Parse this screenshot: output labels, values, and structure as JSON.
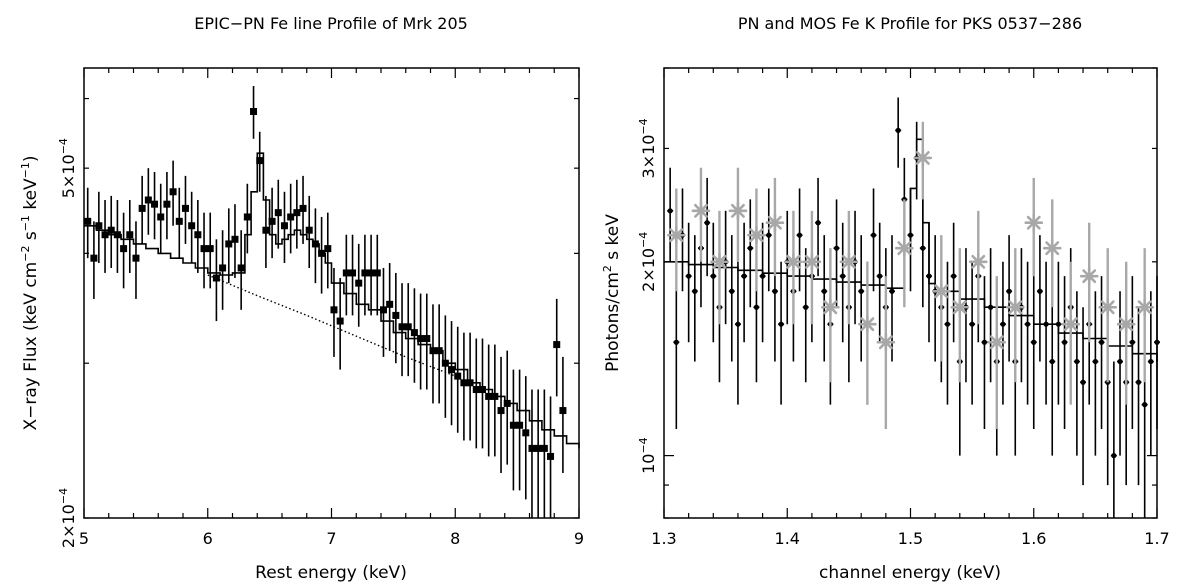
{
  "chart_data": [
    {
      "type": "scatter",
      "title": "EPIC−PN Fe line Profile of Mrk 205",
      "xlabel": "Rest energy (keV)",
      "ylabel_parts": [
        "X−ray Flux (keV cm",
        "−2",
        " s",
        "−1",
        " keV",
        "−1",
        ")"
      ],
      "xlim": [
        5,
        9
      ],
      "ylim": [
        0.0002,
        0.00065
      ],
      "yscale": "log",
      "x_ticks": [
        5,
        6,
        7,
        8,
        9
      ],
      "y_tick_labels": [
        {
          "value": 0.0002,
          "mantissa": "2×10",
          "exp": "−4"
        },
        {
          "value": 0.0005,
          "mantissa": "5×10",
          "exp": "−4"
        }
      ],
      "series": [
        {
          "style": "black-squares",
          "x": [
            5.03,
            5.08,
            5.12,
            5.17,
            5.22,
            5.27,
            5.32,
            5.37,
            5.42,
            5.47,
            5.52,
            5.57,
            5.62,
            5.67,
            5.72,
            5.77,
            5.82,
            5.87,
            5.92,
            5.97,
            6.02,
            6.07,
            6.12,
            6.17,
            6.22,
            6.27,
            6.32,
            6.37,
            6.42,
            6.47,
            6.52,
            6.57,
            6.62,
            6.67,
            6.72,
            6.77,
            6.82,
            6.87,
            6.92,
            6.97,
            7.02,
            7.07,
            7.12,
            7.17,
            7.22,
            7.27,
            7.32,
            7.37,
            7.42,
            7.47,
            7.52,
            7.57,
            7.62,
            7.67,
            7.72,
            7.77,
            7.82,
            7.87,
            7.92,
            7.97,
            8.02,
            8.07,
            8.12,
            8.17,
            8.22,
            8.27,
            8.32,
            8.37,
            8.42,
            8.47,
            8.52,
            8.57,
            8.62,
            8.67,
            8.72,
            8.77,
            8.82,
            8.87
          ],
          "y": [
            0.000435,
            0.000395,
            0.00043,
            0.00042,
            0.000425,
            0.00042,
            0.000405,
            0.00042,
            0.000395,
            0.00045,
            0.00046,
            0.000455,
            0.00044,
            0.000455,
            0.00047,
            0.000435,
            0.00045,
            0.00043,
            0.00042,
            0.000405,
            0.000405,
            0.000375,
            0.000385,
            0.00041,
            0.000415,
            0.000385,
            0.00044,
            0.00058,
            0.00051,
            0.000425,
            0.000435,
            0.000445,
            0.00043,
            0.00044,
            0.000445,
            0.00045,
            0.000425,
            0.00041,
            0.0004,
            0.000405,
            0.000345,
            0.000335,
            0.00038,
            0.00038,
            0.00037,
            0.00038,
            0.00038,
            0.00038,
            0.000345,
            0.00035,
            0.00034,
            0.00033,
            0.00033,
            0.000325,
            0.00032,
            0.00032,
            0.00031,
            0.00031,
            0.0003,
            0.000295,
            0.00029,
            0.000285,
            0.000285,
            0.00028,
            0.00028,
            0.000275,
            0.000275,
            0.000265,
            0.00027,
            0.000255,
            0.000255,
            0.00025,
            0.00024,
            0.00024,
            0.00024,
            0.000235,
            0.000315,
            0.000265
          ],
          "y_err": 4e-05
        }
      ],
      "model_step": {
        "x": [
          5.0,
          5.1,
          5.2,
          5.3,
          5.4,
          5.5,
          5.6,
          5.7,
          5.8,
          5.9,
          6.0,
          6.1,
          6.2,
          6.3,
          6.35,
          6.4,
          6.45,
          6.5,
          6.55,
          6.6,
          6.65,
          6.7,
          6.75,
          6.8,
          6.85,
          6.9,
          6.95,
          7.0,
          7.1,
          7.2,
          7.3,
          7.4,
          7.5,
          7.6,
          7.7,
          7.8,
          7.9,
          8.0,
          8.1,
          8.2,
          8.3,
          8.4,
          8.5,
          8.6,
          8.7,
          8.8,
          8.9,
          9.0
        ],
        "y": [
          0.00043,
          0.000425,
          0.00042,
          0.000415,
          0.00041,
          0.000405,
          0.0004,
          0.000395,
          0.00039,
          0.000385,
          0.00038,
          0.000378,
          0.00038,
          0.00042,
          0.00047,
          0.00052,
          0.00046,
          0.00042,
          0.00041,
          0.000415,
          0.00042,
          0.000425,
          0.00042,
          0.000415,
          0.00041,
          0.0004,
          0.00039,
          0.00037,
          0.00036,
          0.00035,
          0.000345,
          0.000335,
          0.000325,
          0.00032,
          0.000315,
          0.00031,
          0.0003,
          0.000295,
          0.000285,
          0.00028,
          0.000275,
          0.00027,
          0.000265,
          0.000258,
          0.000252,
          0.000248,
          0.000243,
          0.00024
        ]
      },
      "continuum_dotted": {
        "x": [
          6.0,
          6.4,
          6.8,
          7.2,
          7.6,
          8.0
        ],
        "y": [
          0.000378,
          0.000358,
          0.00034,
          0.000322,
          0.000305,
          0.00029
        ]
      }
    },
    {
      "type": "scatter",
      "title": "PN and MOS Fe K Profile for PKS 0537−286",
      "xlabel": "channel energy (keV)",
      "ylabel_parts": [
        "Photons/cm",
        "2",
        " s keV"
      ],
      "xlim": [
        1.3,
        1.7
      ],
      "ylim": [
        8e-05,
        0.0004
      ],
      "yscale": "log",
      "x_ticks": [
        1.3,
        1.4,
        1.5,
        1.6,
        1.7
      ],
      "y_tick_labels": [
        {
          "value": 0.0001,
          "mantissa": "10",
          "exp": "−4"
        },
        {
          "value": 0.0002,
          "mantissa": "2×10",
          "exp": "−4"
        },
        {
          "value": 0.0003,
          "mantissa": "3×10",
          "exp": "−4"
        }
      ],
      "series": [
        {
          "style": "black-dots",
          "x": [
            1.305,
            1.31,
            1.315,
            1.32,
            1.325,
            1.33,
            1.335,
            1.34,
            1.345,
            1.35,
            1.355,
            1.36,
            1.365,
            1.37,
            1.375,
            1.38,
            1.385,
            1.39,
            1.395,
            1.4,
            1.405,
            1.41,
            1.415,
            1.42,
            1.425,
            1.43,
            1.435,
            1.44,
            1.445,
            1.45,
            1.455,
            1.46,
            1.465,
            1.47,
            1.475,
            1.48,
            1.485,
            1.49,
            1.495,
            1.5,
            1.505,
            1.51,
            1.515,
            1.52,
            1.525,
            1.53,
            1.535,
            1.54,
            1.545,
            1.55,
            1.555,
            1.56,
            1.565,
            1.57,
            1.575,
            1.58,
            1.585,
            1.59,
            1.595,
            1.6,
            1.605,
            1.61,
            1.615,
            1.62,
            1.625,
            1.63,
            1.635,
            1.64,
            1.645,
            1.65,
            1.655,
            1.66,
            1.665,
            1.67,
            1.675,
            1.68,
            1.685,
            1.69,
            1.695,
            1.7
          ],
          "y": [
            0.00024,
            0.00015,
            0.00022,
            0.00019,
            0.00018,
            0.00021,
            0.00023,
            0.00019,
            0.00017,
            0.0002,
            0.00018,
            0.00016,
            0.00019,
            0.00021,
            0.00017,
            0.00019,
            0.00022,
            0.00018,
            0.00016,
            0.0002,
            0.00018,
            0.00022,
            0.00017,
            0.00019,
            0.00023,
            0.00018,
            0.00016,
            0.00021,
            0.00019,
            0.00017,
            0.0002,
            0.00018,
            0.00016,
            0.00022,
            0.00019,
            0.00017,
            0.00018,
            0.00032,
            0.00025,
            0.00022,
            0.00029,
            0.00021,
            0.00019,
            0.00018,
            0.00017,
            0.00016,
            0.00019,
            0.00014,
            0.00017,
            0.00016,
            0.00019,
            0.00015,
            0.00017,
            0.00014,
            0.00016,
            0.00018,
            0.00014,
            0.00017,
            0.00016,
            0.00015,
            0.00018,
            0.00016,
            0.00014,
            0.00016,
            0.00015,
            0.00017,
            0.00014,
            0.00013,
            0.00016,
            0.00014,
            0.00015,
            0.00013,
            0.0001,
            0.00014,
            0.00013,
            0.00015,
            0.00013,
            0.00012,
            0.00014,
            0.00015
          ],
          "y_err": 4e-05
        },
        {
          "style": "gray-stars",
          "x": [
            1.31,
            1.33,
            1.345,
            1.36,
            1.375,
            1.39,
            1.405,
            1.42,
            1.435,
            1.45,
            1.465,
            1.48,
            1.495,
            1.51,
            1.525,
            1.54,
            1.555,
            1.57,
            1.585,
            1.6,
            1.615,
            1.63,
            1.645,
            1.66,
            1.675,
            1.69
          ],
          "y": [
            0.00022,
            0.00024,
            0.0002,
            0.00024,
            0.00022,
            0.00023,
            0.0002,
            0.0002,
            0.00017,
            0.0002,
            0.00016,
            0.00015,
            0.00021,
            0.00029,
            0.00018,
            0.00017,
            0.0002,
            0.00015,
            0.00017,
            0.00023,
            0.00021,
            0.00016,
            0.00019,
            0.00017,
            0.00016,
            0.00017
          ],
          "y_err": 4e-05
        }
      ],
      "model_step": {
        "x": [
          1.3,
          1.32,
          1.34,
          1.36,
          1.38,
          1.4,
          1.42,
          1.44,
          1.46,
          1.48,
          1.49,
          1.495,
          1.5,
          1.505,
          1.51,
          1.515,
          1.52,
          1.54,
          1.56,
          1.58,
          1.6,
          1.62,
          1.64,
          1.66,
          1.68,
          1.7
        ],
        "y": [
          0.0002,
          0.000198,
          0.000196,
          0.000194,
          0.000192,
          0.00019,
          0.000188,
          0.000186,
          0.000184,
          0.000182,
          0.000182,
          0.00021,
          0.00026,
          0.00031,
          0.00023,
          0.000185,
          0.00018,
          0.000175,
          0.00017,
          0.000165,
          0.00016,
          0.000155,
          0.000152,
          0.000148,
          0.000144,
          0.00014
        ]
      }
    }
  ]
}
